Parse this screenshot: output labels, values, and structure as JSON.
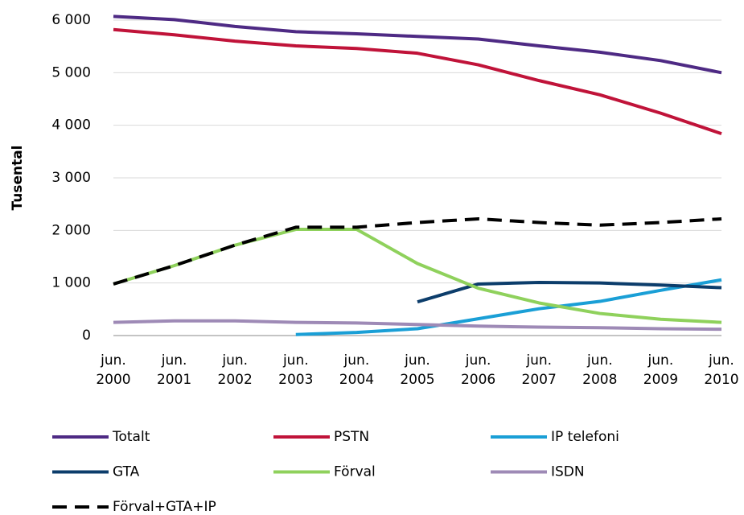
{
  "chart_data": {
    "type": "line",
    "y_label": "Tusental",
    "categories": [
      "jun. 2000",
      "jun. 2001",
      "jun. 2002",
      "jun. 2003",
      "jun. 2004",
      "jun. 2005",
      "jun. 2006",
      "jun. 2007",
      "jun. 2008",
      "jun. 2009",
      "jun. 2010"
    ],
    "series": [
      {
        "name": "Totalt",
        "color": "#4e2a84",
        "values": [
          6070,
          6010,
          5880,
          5780,
          5740,
          5690,
          5640,
          5510,
          5390,
          5230,
          5000
        ]
      },
      {
        "name": "PSTN",
        "color": "#c01339",
        "values": [
          5820,
          5720,
          5600,
          5510,
          5460,
          5370,
          5150,
          4850,
          4580,
          4230,
          3840
        ]
      },
      {
        "name": "IP telefoni",
        "color": "#1a9fd6",
        "values": [
          null,
          null,
          null,
          20,
          60,
          130,
          320,
          510,
          650,
          860,
          1060
        ]
      },
      {
        "name": "GTA",
        "color": "#0c3d6b",
        "values": [
          null,
          null,
          null,
          null,
          null,
          640,
          980,
          1010,
          1000,
          960,
          910
        ]
      },
      {
        "name": "Förval",
        "color": "#8fd15c",
        "values": [
          980,
          1330,
          1720,
          2020,
          2020,
          1370,
          900,
          620,
          420,
          310,
          250
        ]
      },
      {
        "name": "ISDN",
        "color": "#9e8ab6",
        "values": [
          250,
          280,
          280,
          250,
          240,
          210,
          180,
          160,
          150,
          130,
          120
        ]
      },
      {
        "name": "Förval+GTA+IP",
        "color": "#000000",
        "dashed": true,
        "values": [
          980,
          1330,
          1720,
          2060,
          2060,
          2150,
          2220,
          2150,
          2100,
          2150,
          2220
        ]
      }
    ],
    "ylim": [
      0,
      6000
    ],
    "yticks": [
      0,
      {
        "value": 1000,
        "label": "1 000"
      },
      {
        "value": 2000,
        "label": "2 000"
      },
      {
        "value": 3000,
        "label": "3 000"
      },
      {
        "value": 4000,
        "label": "4 000"
      },
      {
        "value": 5000,
        "label": "5 000"
      },
      {
        "value": 6000,
        "label": "6 000"
      }
    ],
    "grid": true
  }
}
